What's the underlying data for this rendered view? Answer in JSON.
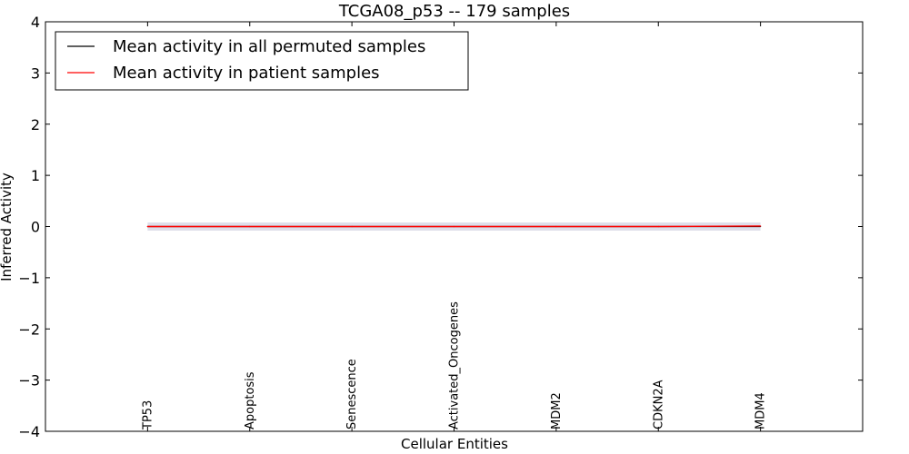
{
  "chart_data": {
    "type": "line",
    "title": "TCGA08_p53 -- 179 samples",
    "xlabel": "Cellular Entities",
    "ylabel": "Inferred Activity",
    "ylim": [
      -4,
      4
    ],
    "yticks": [
      4,
      3,
      2,
      1,
      0,
      -1,
      -2,
      -3,
      -4
    ],
    "ytick_labels": [
      "4",
      "3",
      "2",
      "1",
      "0",
      "−1",
      "−2",
      "−3",
      "−4"
    ],
    "categories": [
      "TP53",
      "Apoptosis",
      "Senescence",
      "Activated_Oncogenes",
      "MDM2",
      "CDKN2A",
      "MDM4"
    ],
    "xlim": [
      -1,
      7
    ],
    "series": [
      {
        "name": "Mean activity in all permuted samples",
        "color": "#000000",
        "values": [
          0,
          0,
          0,
          0,
          0,
          0,
          0
        ]
      },
      {
        "name": "Mean activity in patient samples",
        "color": "#ff0000",
        "values": [
          0,
          0,
          0,
          0,
          0,
          0,
          0.01
        ]
      }
    ],
    "band": {
      "lower": [
        -0.08,
        -0.08,
        -0.08,
        -0.08,
        -0.08,
        -0.08,
        -0.08
      ],
      "upper": [
        0.08,
        0.08,
        0.08,
        0.08,
        0.08,
        0.08,
        0.08
      ],
      "color": "#c8c8dc"
    },
    "legend_position": "top-left",
    "grid": false
  }
}
